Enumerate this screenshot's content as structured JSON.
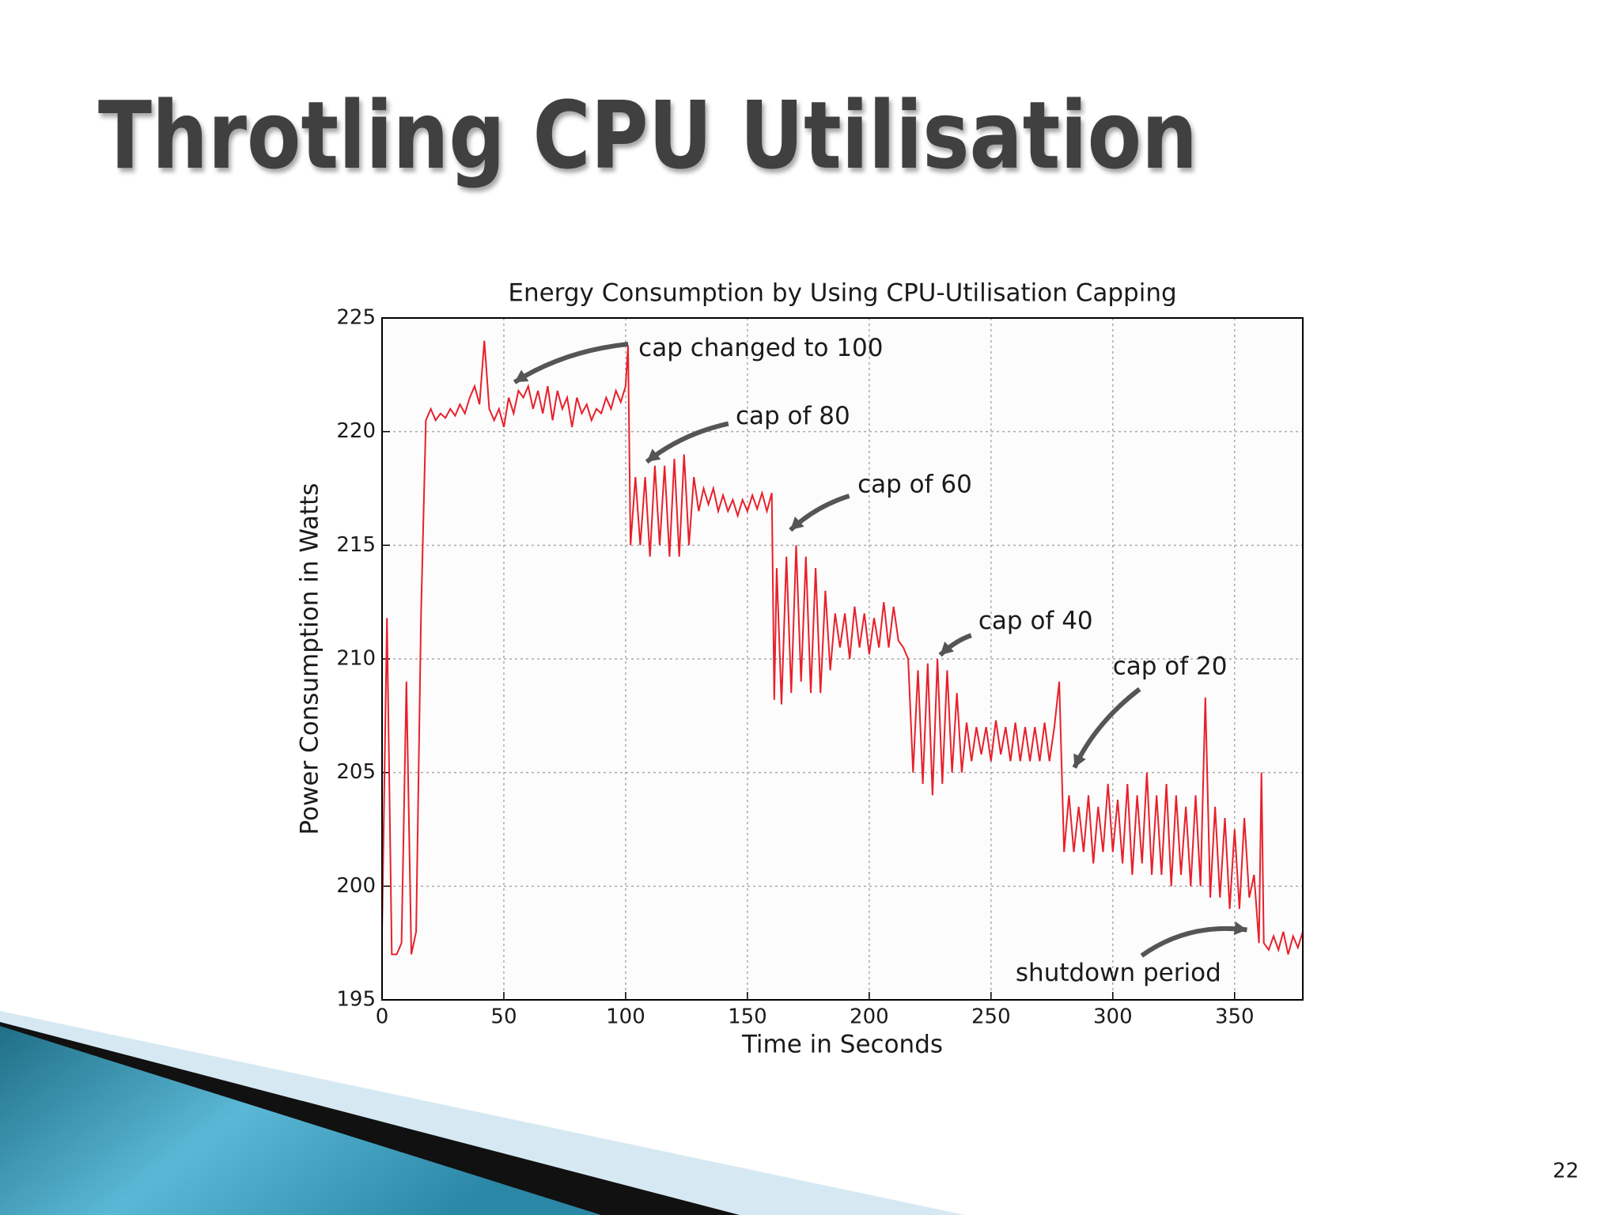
{
  "slide": {
    "title": "Throtling CPU Utilisation",
    "page_number": "22"
  },
  "chart_data": {
    "type": "line",
    "title": "Energy Consumption by Using CPU-Utilisation Capping",
    "xlabel": "Time in Seconds",
    "ylabel": "Power Consumption in Watts",
    "color": "#e8202a",
    "grid": true,
    "xlim": [
      0,
      378
    ],
    "ylim": [
      195,
      225
    ],
    "xticks": [
      0,
      50,
      100,
      150,
      200,
      250,
      300,
      350
    ],
    "yticks": [
      195,
      200,
      205,
      210,
      215,
      220,
      225
    ],
    "annotations": [
      "cap changed to 100",
      "cap of 80",
      "cap of 60",
      "cap of 40",
      "cap of 20",
      "shutdown period"
    ],
    "x": [
      0,
      2,
      4,
      6,
      8,
      10,
      12,
      14,
      16,
      18,
      20,
      22,
      24,
      26,
      28,
      30,
      32,
      34,
      36,
      38,
      40,
      42,
      44,
      46,
      48,
      50,
      52,
      54,
      56,
      58,
      60,
      62,
      64,
      66,
      68,
      70,
      72,
      74,
      76,
      78,
      80,
      82,
      84,
      86,
      88,
      90,
      92,
      94,
      96,
      98,
      100,
      101,
      102,
      104,
      106,
      108,
      110,
      112,
      114,
      116,
      118,
      120,
      122,
      124,
      126,
      128,
      130,
      132,
      134,
      136,
      138,
      140,
      142,
      144,
      146,
      148,
      150,
      152,
      154,
      156,
      158,
      160,
      161,
      162,
      164,
      166,
      168,
      170,
      172,
      174,
      176,
      178,
      180,
      182,
      184,
      186,
      188,
      190,
      192,
      194,
      196,
      198,
      200,
      202,
      204,
      206,
      208,
      210,
      212,
      214,
      216,
      218,
      220,
      222,
      224,
      226,
      228,
      230,
      232,
      234,
      236,
      238,
      240,
      242,
      244,
      246,
      248,
      250,
      252,
      254,
      256,
      258,
      260,
      262,
      264,
      266,
      268,
      270,
      272,
      274,
      276,
      278,
      280,
      282,
      284,
      286,
      288,
      290,
      292,
      294,
      296,
      298,
      300,
      302,
      304,
      306,
      308,
      310,
      312,
      314,
      316,
      318,
      320,
      322,
      324,
      326,
      328,
      330,
      332,
      334,
      336,
      338,
      340,
      342,
      344,
      346,
      348,
      350,
      352,
      354,
      356,
      358,
      360,
      361,
      362,
      364,
      366,
      368,
      370,
      372,
      374,
      376,
      378
    ],
    "values": [
      198,
      211.8,
      197,
      197,
      197.5,
      209,
      197,
      198,
      212,
      220.5,
      221,
      220.5,
      220.8,
      220.6,
      221,
      220.7,
      221.2,
      220.8,
      221.5,
      222,
      221.2,
      224,
      221,
      220.5,
      221,
      220.2,
      221.5,
      220.8,
      221.8,
      221.5,
      222,
      221,
      221.8,
      220.8,
      222,
      220.5,
      221.8,
      221,
      221.5,
      220.2,
      221.5,
      220.8,
      221.2,
      220.5,
      221,
      220.8,
      221.5,
      221,
      221.8,
      221.3,
      222,
      223.8,
      215,
      218,
      215,
      218,
      214.5,
      218.5,
      215,
      218.5,
      214.5,
      218.8,
      214.5,
      219,
      215,
      218,
      216.5,
      217.5,
      216.8,
      217.5,
      216.5,
      217.2,
      216.5,
      217,
      216.3,
      217,
      216.5,
      217.2,
      216.6,
      217.3,
      216.5,
      217.3,
      208.2,
      214,
      208,
      214.5,
      208.5,
      215,
      209,
      214.5,
      208.5,
      214,
      208.5,
      213,
      209.5,
      212,
      210.5,
      212,
      210,
      212.3,
      210.5,
      212,
      210.2,
      211.8,
      210.5,
      212.5,
      210.5,
      212.3,
      210.8,
      210.5,
      210,
      205,
      209.5,
      204.5,
      209.8,
      204,
      210,
      204.5,
      209.5,
      205,
      208.5,
      205,
      207.2,
      205.5,
      207,
      205.8,
      207,
      205.5,
      207.3,
      205.8,
      207,
      205.5,
      207.2,
      205.5,
      207,
      205.5,
      207,
      205.5,
      207.2,
      205.5,
      207,
      209,
      201.5,
      204,
      201.5,
      203.5,
      201.5,
      204,
      201,
      203.5,
      201.5,
      204.5,
      201.5,
      203.8,
      201,
      204.5,
      200.5,
      204,
      201,
      205,
      200.5,
      204,
      200.5,
      204.5,
      200,
      204,
      200.5,
      203.5,
      200,
      204,
      200,
      208.3,
      199.5,
      203.5,
      199.5,
      203,
      199,
      202.5,
      199,
      203,
      199.5,
      200.5,
      197.5,
      205,
      197.5,
      197.2,
      197.8,
      197.2,
      198,
      197,
      197.8,
      197.3,
      198
    ]
  }
}
